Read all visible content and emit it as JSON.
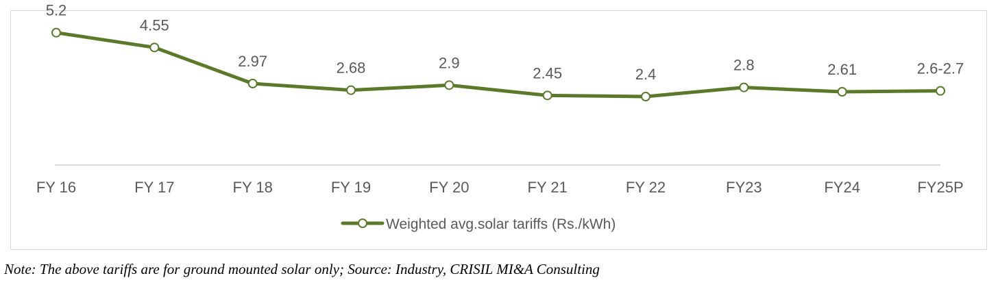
{
  "chart_data": {
    "type": "line",
    "categories": [
      "FY 16",
      "FY 17",
      "FY 18",
      "FY 19",
      "FY 20",
      "FY 21",
      "FY 22",
      "FY23",
      "FY24",
      "FY25P"
    ],
    "series": [
      {
        "name": "Weighted avg.solar tariffs (Rs./kWh)",
        "values": [
          5.2,
          4.55,
          2.97,
          2.68,
          2.9,
          2.45,
          2.4,
          2.8,
          2.61,
          2.65
        ],
        "data_labels": [
          "5.2",
          "4.55",
          "2.97",
          "2.68",
          "2.9",
          "2.45",
          "2.4",
          "2.8",
          "2.61",
          "2.6-2.7"
        ]
      }
    ],
    "title": "",
    "xlabel": "",
    "ylabel": "",
    "ylim": [
      -0.6,
      6
    ],
    "grid": false,
    "legend": "bottom",
    "colors": {
      "line": "#5a7a2a",
      "marker_fill": "#ffffff",
      "axis": "#d9d9d9"
    }
  },
  "note": "Note: The above tariffs are for ground mounted solar only; Source: Industry, CRISIL MI&A Consulting"
}
